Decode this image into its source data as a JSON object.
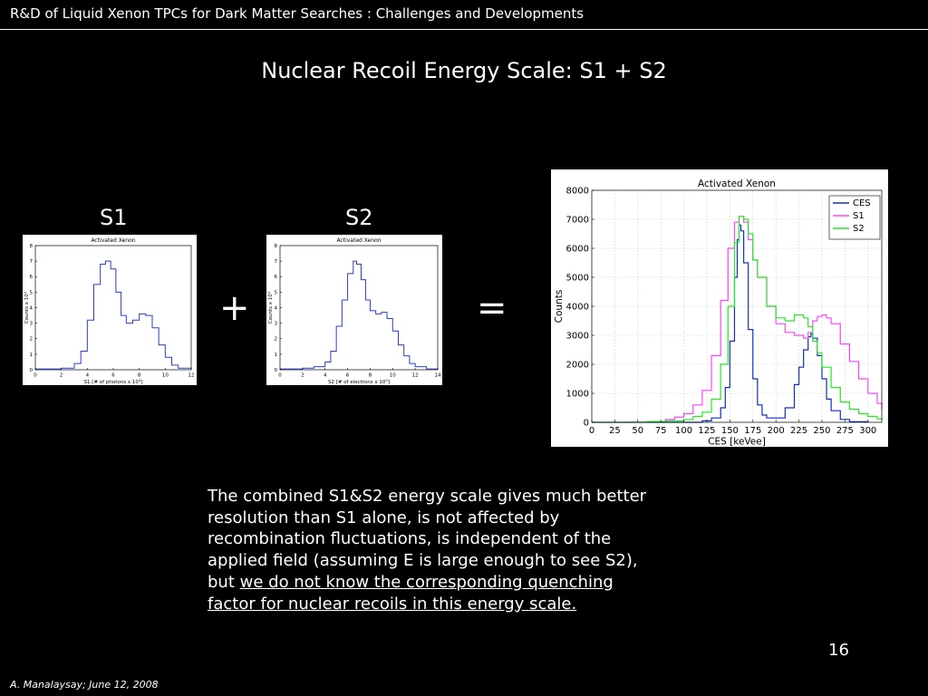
{
  "header": {
    "title": "R&D of Liquid Xenon TPCs for Dark Matter Searches : Challenges and Developments"
  },
  "slide": {
    "title": "Nuclear Recoil Energy Scale: S1 + S2",
    "label_s1": "S1",
    "label_s2": "S2",
    "plus": "+",
    "equals": "=",
    "body_plain": "The combined S1&S2 energy scale gives much better resolution than S1 alone, is not affected by recombination fluctuations, is independent of the applied field (assuming E is large enough to see S2), but ",
    "body_underlined": "we do not know the corresponding quenching factor for nuclear recoils in this energy scale.",
    "page_number": "16"
  },
  "footer": {
    "author_date": "A. Manalaysay; June 12, 2008"
  },
  "chart_data": [
    {
      "type": "line",
      "title": "Activated Xenon",
      "xlabel": "S1 [# of photons x 10^3]",
      "ylabel": "Counts x 10^3",
      "xlim": [
        0,
        12
      ],
      "ylim": [
        0,
        8
      ],
      "xticks": [
        0,
        2,
        4,
        6,
        8,
        10,
        12
      ],
      "yticks": [
        0,
        1,
        2,
        3,
        4,
        5,
        6,
        7,
        8
      ],
      "grid": false,
      "colors": {
        "line": "#2a3fd0"
      },
      "series": [
        {
          "x": [
            0,
            1,
            2,
            3,
            3.5,
            4,
            4.5,
            5,
            5.4,
            5.8,
            6.2,
            6.6,
            7,
            7.5,
            8,
            8.5,
            9,
            9.5,
            10,
            10.5,
            11,
            12
          ],
          "values": [
            0.05,
            0.05,
            0.1,
            0.4,
            1.2,
            3.2,
            5.5,
            6.8,
            7.0,
            6.5,
            5.0,
            3.5,
            3.0,
            3.2,
            3.6,
            3.5,
            2.7,
            1.6,
            0.8,
            0.3,
            0.1,
            0.05
          ]
        }
      ]
    },
    {
      "type": "line",
      "title": "Activated Xenon",
      "xlabel": "S2 [# of electrons x 10^3]",
      "ylabel": "Counts x 10^3",
      "xlim": [
        0,
        14
      ],
      "ylim": [
        0,
        8
      ],
      "xticks": [
        0,
        2,
        4,
        6,
        8,
        10,
        12,
        14
      ],
      "yticks": [
        0,
        1,
        2,
        3,
        4,
        5,
        6,
        7,
        8
      ],
      "grid": false,
      "colors": {
        "line": "#2a3fd0"
      },
      "series": [
        {
          "x": [
            0,
            2,
            3,
            4,
            4.5,
            5,
            5.5,
            6,
            6.5,
            6.8,
            7.2,
            7.6,
            8,
            8.5,
            9,
            9.5,
            10,
            10.5,
            11,
            11.5,
            12,
            13,
            14
          ],
          "values": [
            0.05,
            0.1,
            0.2,
            0.5,
            1.2,
            2.8,
            4.5,
            6.2,
            7.0,
            6.8,
            5.8,
            4.5,
            3.8,
            3.6,
            3.7,
            3.3,
            2.5,
            1.6,
            0.9,
            0.4,
            0.2,
            0.05,
            0.02
          ]
        }
      ]
    },
    {
      "type": "line",
      "title": "Activated Xenon",
      "xlabel": "CES [keVee]",
      "ylabel": "Counts",
      "xlim": [
        0,
        315
      ],
      "ylim": [
        0,
        8000
      ],
      "xticks": [
        0,
        25,
        50,
        75,
        100,
        125,
        150,
        175,
        200,
        225,
        250,
        275,
        300
      ],
      "yticks": [
        0,
        1000,
        2000,
        3000,
        4000,
        5000,
        6000,
        7000,
        8000
      ],
      "grid": true,
      "legend": "top-right",
      "series": [
        {
          "name": "CES",
          "color": "#1030c0",
          "x": [
            0,
            100,
            120,
            130,
            140,
            145,
            150,
            155,
            158,
            160,
            162,
            165,
            170,
            175,
            180,
            185,
            190,
            200,
            210,
            220,
            225,
            230,
            235,
            238,
            240,
            245,
            250,
            255,
            260,
            270,
            280,
            300
          ],
          "values": [
            0,
            0,
            50,
            150,
            500,
            1200,
            2800,
            5000,
            6300,
            6800,
            6600,
            5500,
            3200,
            1500,
            600,
            250,
            150,
            150,
            500,
            1300,
            1900,
            2500,
            2950,
            3050,
            2900,
            2300,
            1500,
            800,
            400,
            100,
            20,
            0
          ]
        },
        {
          "name": "S1",
          "color": "#ff44ff",
          "x": [
            0,
            40,
            60,
            80,
            90,
            100,
            110,
            120,
            130,
            140,
            148,
            155,
            160,
            165,
            170,
            175,
            180,
            190,
            200,
            210,
            220,
            230,
            235,
            240,
            245,
            250,
            255,
            260,
            270,
            280,
            290,
            300,
            310,
            315
          ],
          "values": [
            0,
            10,
            30,
            100,
            180,
            300,
            600,
            1100,
            2300,
            4200,
            6000,
            6900,
            7100,
            6900,
            6300,
            5600,
            5000,
            4000,
            3400,
            3100,
            3000,
            2900,
            3100,
            3500,
            3650,
            3700,
            3600,
            3400,
            2700,
            2100,
            1500,
            1000,
            650,
            450
          ]
        },
        {
          "name": "S2",
          "color": "#22ee22",
          "x": [
            0,
            60,
            80,
            100,
            110,
            120,
            130,
            140,
            148,
            155,
            160,
            165,
            170,
            175,
            180,
            190,
            200,
            210,
            220,
            230,
            235,
            240,
            245,
            250,
            260,
            270,
            280,
            290,
            300,
            310,
            315
          ],
          "values": [
            0,
            30,
            50,
            100,
            200,
            350,
            800,
            2000,
            4000,
            6200,
            7100,
            7000,
            6500,
            5600,
            5000,
            4000,
            3600,
            3500,
            3700,
            3600,
            3300,
            2800,
            2400,
            1900,
            1200,
            700,
            450,
            300,
            200,
            120,
            80
          ]
        }
      ]
    }
  ]
}
